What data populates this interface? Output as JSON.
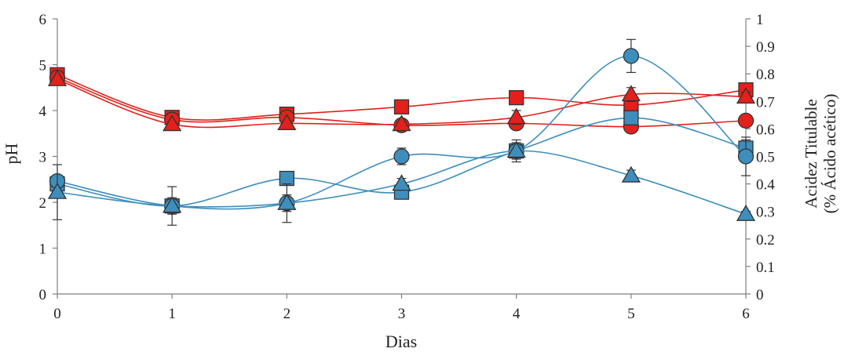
{
  "chart_data": {
    "type": "line",
    "title": "",
    "xlabel": "Dias",
    "ylabel": "pH",
    "y2label_lines": [
      "Acidez Titulable",
      "(% Ácido acético)"
    ],
    "x": [
      0,
      1,
      2,
      3,
      4,
      5,
      6
    ],
    "xticks": [
      "0",
      "1",
      "2",
      "3",
      "4",
      "5",
      "6"
    ],
    "xlim": [
      0,
      6
    ],
    "ylim": [
      0,
      6
    ],
    "yticks": [
      "0",
      "1",
      "2",
      "3",
      "4",
      "5",
      "6"
    ],
    "y2lim": [
      0,
      1
    ],
    "y2ticks": [
      "0",
      "0.1",
      "0.2",
      "0.3",
      "0.4",
      "0.5",
      "0.6",
      "0.7",
      "0.8",
      "0.9",
      "1"
    ],
    "grid": false,
    "legend": "none",
    "series": [
      {
        "axis": "pH",
        "marker": "square",
        "color": "#e3201b",
        "values": [
          4.78,
          3.85,
          3.92,
          4.08,
          4.28,
          4.12,
          4.45
        ],
        "errors": [
          0.05,
          0.05,
          0.05,
          0.05,
          0.05,
          0.06,
          0.06
        ]
      },
      {
        "axis": "pH",
        "marker": "circle",
        "color": "#e3201b",
        "values": [
          4.72,
          3.8,
          3.85,
          3.68,
          3.72,
          3.65,
          3.78
        ],
        "errors": [
          0.05,
          0.05,
          0.05,
          0.05,
          0.05,
          0.06,
          0.05
        ]
      },
      {
        "axis": "pH",
        "marker": "triangle",
        "color": "#e3201b",
        "values": [
          4.68,
          3.7,
          3.72,
          3.7,
          3.85,
          4.35,
          4.3
        ],
        "errors": [
          0.05,
          0.05,
          0.05,
          0.05,
          0.15,
          0.15,
          0.1
        ]
      },
      {
        "axis": "acidity",
        "marker": "square",
        "color": "#3e8ebd",
        "values": [
          0.4,
          0.32,
          0.42,
          0.37,
          0.52,
          0.64,
          0.53
        ],
        "errors": [
          0.02,
          0.02,
          0.02,
          0.02,
          0.02,
          0.02,
          0.03
        ]
      },
      {
        "axis": "acidity",
        "marker": "circle",
        "color": "#3e8ebd",
        "values": [
          0.41,
          0.32,
          0.33,
          0.5,
          0.52,
          0.865,
          0.5
        ],
        "errors": [
          0.02,
          0.03,
          0.03,
          0.03,
          0.04,
          0.06,
          0.07
        ]
      },
      {
        "axis": "acidity",
        "marker": "triangle",
        "color": "#3e8ebd",
        "values": [
          0.37,
          0.32,
          0.33,
          0.4,
          0.52,
          0.43,
          0.29
        ],
        "errors": [
          0.1,
          0.07,
          0.07,
          0.02,
          0.03,
          0.02,
          0.01
        ]
      }
    ]
  }
}
